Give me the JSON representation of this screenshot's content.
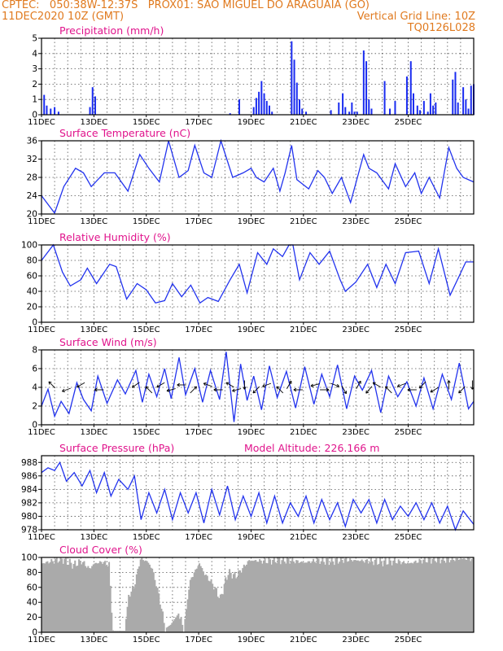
{
  "header": {
    "line1": "CPTEC:   050:38W-12:37S   PROX01: SAO MIGUEL DO ARAGUAIA (GO)",
    "line2": "11DEC2020 10Z (GMT)",
    "grid_note": "Vertical Grid Line: 10Z",
    "code": "TQ0126L028"
  },
  "colors": {
    "header": "#e07a1f",
    "title": "#e0148c",
    "line": "#2233ee",
    "bars": "#1a2cf0",
    "cloud": "#aaaaaa",
    "grid": "#555555",
    "axis": "#000000"
  },
  "x_tick_labels": [
    "11DEC",
    "13DEC",
    "15DEC",
    "17DEC",
    "19DEC",
    "21DEC",
    "23DEC",
    "25DEC"
  ],
  "chart_data": [
    {
      "type": "bar",
      "title": "Precipitation (mm/h)",
      "ylim": [
        0,
        5
      ],
      "yticks": [
        0,
        1,
        2,
        3,
        4,
        5
      ],
      "x": [
        0.1,
        0.2,
        0.35,
        0.5,
        0.65,
        1.85,
        1.95,
        2.05,
        7.2,
        7.55,
        8.1,
        8.2,
        8.3,
        8.4,
        8.5,
        8.6,
        8.7,
        8.8,
        9.55,
        9.65,
        9.75,
        9.85,
        9.95,
        10.1,
        11.05,
        11.35,
        11.5,
        11.6,
        11.75,
        11.85,
        11.95,
        12.05,
        12.3,
        12.4,
        12.5,
        12.6,
        13.1,
        13.3,
        13.5,
        13.95,
        14.1,
        14.2,
        14.35,
        14.45,
        14.6,
        14.75,
        14.85,
        14.95,
        15.05,
        15.7,
        15.8,
        15.9,
        16.1,
        16.2,
        16.3,
        16.4,
        16.5
      ],
      "values": [
        1.3,
        0.6,
        0.4,
        0.5,
        0.2,
        0.5,
        1.8,
        1.2,
        0.1,
        1.0,
        0.5,
        1.1,
        1.5,
        2.2,
        1.4,
        0.9,
        0.6,
        0.2,
        4.8,
        3.6,
        2.1,
        1.0,
        0.4,
        0.2,
        0.3,
        0.8,
        1.4,
        0.5,
        0.2,
        0.8,
        0.2,
        0.2,
        4.2,
        3.5,
        1.0,
        0.4,
        2.2,
        0.4,
        0.9,
        2.5,
        3.5,
        1.4,
        0.6,
        0.3,
        0.9,
        0.2,
        1.4,
        0.6,
        0.8,
        2.3,
        2.8,
        0.8,
        1.8,
        1.0,
        0.4,
        1.9,
        2.0
      ]
    },
    {
      "type": "line",
      "title": "Surface Temperature (nC)",
      "ylim": [
        20,
        36
      ],
      "yticks": [
        20,
        24,
        28,
        32,
        36
      ],
      "x": [
        0,
        0.5,
        0.85,
        1.3,
        1.6,
        1.9,
        2.4,
        2.8,
        3.3,
        3.75,
        4.1,
        4.5,
        4.85,
        5.25,
        5.6,
        5.85,
        6.2,
        6.5,
        6.85,
        7.3,
        7.7,
        8.0,
        8.2,
        8.5,
        8.85,
        9.1,
        9.3,
        9.55,
        9.75,
        10.2,
        10.55,
        10.8,
        11.1,
        11.45,
        11.8,
        12.3,
        12.5,
        12.8,
        13.25,
        13.5,
        13.9,
        14.25,
        14.5,
        14.8,
        15.2,
        15.55,
        15.85,
        16.1,
        16.5
      ],
      "values": [
        24,
        20.2,
        26,
        30,
        29,
        26,
        29,
        29,
        25,
        33,
        30,
        27,
        36,
        28,
        29.5,
        35,
        29,
        28,
        36,
        28,
        29,
        30,
        28,
        27,
        30,
        25,
        29,
        35,
        27.5,
        25.5,
        29.5,
        28,
        24.5,
        28,
        22.5,
        33,
        30,
        29,
        25.5,
        31,
        26,
        29,
        24.5,
        28,
        23.5,
        34.5,
        30,
        28,
        27
      ]
    },
    {
      "type": "line",
      "title": "Relative Humidity (%)",
      "ylim": [
        0,
        100
      ],
      "yticks": [
        0,
        20,
        40,
        60,
        80,
        100
      ],
      "x": [
        0,
        0.45,
        0.8,
        1.1,
        1.5,
        1.75,
        2.1,
        2.6,
        2.85,
        3.25,
        3.65,
        4.0,
        4.35,
        4.7,
        5.0,
        5.35,
        5.7,
        6.05,
        6.35,
        6.75,
        7.2,
        7.55,
        7.85,
        8.25,
        8.6,
        8.85,
        9.2,
        9.45,
        9.6,
        9.85,
        10.25,
        10.6,
        11.0,
        11.4,
        11.6,
        12.0,
        12.45,
        12.8,
        13.15,
        13.5,
        13.9,
        14.4,
        14.8,
        15.15,
        15.6,
        15.95,
        16.2,
        16.5
      ],
      "values": [
        80,
        100,
        65,
        47,
        55,
        70,
        50,
        75,
        72,
        30,
        50,
        42,
        25,
        28,
        50,
        33,
        48,
        25,
        32,
        27,
        55,
        75,
        38,
        90,
        75,
        95,
        85,
        100,
        100,
        55,
        90,
        75,
        92,
        55,
        40,
        52,
        75,
        45,
        75,
        50,
        90,
        92,
        50,
        95,
        35,
        60,
        78,
        78
      ]
    },
    {
      "type": "line",
      "title": "Surface Wind (m/s)",
      "ylim": [
        0,
        8
      ],
      "yticks": [
        0,
        2,
        4,
        6,
        8
      ],
      "x": [
        0,
        0.25,
        0.5,
        0.75,
        1.05,
        1.35,
        1.6,
        1.9,
        2.15,
        2.5,
        2.9,
        3.2,
        3.6,
        3.85,
        4.1,
        4.4,
        4.7,
        4.95,
        5.25,
        5.5,
        5.85,
        6.15,
        6.45,
        6.8,
        7.05,
        7.35,
        7.6,
        7.85,
        8.1,
        8.4,
        8.7,
        9.0,
        9.35,
        9.7,
        10.05,
        10.4,
        10.7,
        11.0,
        11.3,
        11.65,
        11.95,
        12.25,
        12.6,
        12.95,
        13.25,
        13.6,
        13.95,
        14.3,
        14.6,
        14.95,
        15.3,
        15.65,
        15.95,
        16.3,
        16.5
      ],
      "values": [
        2,
        3.8,
        0.9,
        2.5,
        1.2,
        4.5,
        2.7,
        1.5,
        5.2,
        2.3,
        4.8,
        3.3,
        5.8,
        2.4,
        5.4,
        3.0,
        6.0,
        2.8,
        7.2,
        3.2,
        6.0,
        2.4,
        5.8,
        2.7,
        7.8,
        0.3,
        6.5,
        2.6,
        5.2,
        1.6,
        6.3,
        2.9,
        5.7,
        1.8,
        6.2,
        2.2,
        5.4,
        3.0,
        6.4,
        1.7,
        5.2,
        3.7,
        5.8,
        1.3,
        5.2,
        3.0,
        4.6,
        2.0,
        5.0,
        1.7,
        5.4,
        2.7,
        6.6,
        1.7,
        2.5
      ],
      "arrow_x": [
        0.4,
        0.95,
        1.5,
        2.2,
        3.6,
        4.1,
        4.55,
        4.95,
        5.35,
        5.8,
        6.35,
        6.75,
        7.2,
        7.45,
        7.75,
        8.2,
        8.6,
        9.1,
        9.45,
        9.8,
        10.45,
        10.8,
        11.2,
        11.55,
        12.1,
        12.5,
        12.8,
        13.25,
        13.75,
        14.15,
        14.55,
        15.0,
        15.55,
        16.05,
        16.45
      ],
      "arrow_dir": [
        135,
        200,
        210,
        180,
        215,
        135,
        210,
        195,
        180,
        45,
        160,
        180,
        150,
        195,
        270,
        225,
        200,
        135,
        60,
        180,
        195,
        0,
        340,
        300,
        60,
        230,
        150,
        135,
        200,
        180,
        225,
        210,
        90,
        225,
        270
      ]
    },
    {
      "type": "line",
      "title": "Surface Pressure (hPa)",
      "annotation": "Model Altitude: 226.166  m",
      "ylim": [
        978,
        989
      ],
      "yticks": [
        978,
        980,
        982,
        984,
        986,
        988
      ],
      "x": [
        0,
        0.25,
        0.5,
        0.7,
        0.95,
        1.25,
        1.55,
        1.85,
        2.1,
        2.4,
        2.65,
        2.95,
        3.3,
        3.55,
        3.8,
        4.1,
        4.4,
        4.7,
        5.0,
        5.3,
        5.6,
        5.9,
        6.2,
        6.5,
        6.8,
        7.1,
        7.4,
        7.7,
        8.0,
        8.3,
        8.6,
        8.9,
        9.2,
        9.5,
        9.8,
        10.1,
        10.4,
        10.7,
        11.0,
        11.3,
        11.6,
        11.9,
        12.2,
        12.5,
        12.8,
        13.1,
        13.4,
        13.7,
        14.0,
        14.3,
        14.6,
        14.9,
        15.2,
        15.5,
        15.8,
        16.1,
        16.5
      ],
      "values": [
        986.5,
        987.2,
        986.8,
        988.0,
        985.2,
        986.5,
        984.5,
        986.8,
        983.5,
        986.5,
        983.0,
        985.5,
        984.0,
        986.0,
        979.5,
        983.5,
        980.5,
        984.0,
        979.5,
        983.5,
        980.5,
        983.5,
        979.0,
        984.0,
        980.2,
        984.5,
        979.5,
        983.0,
        980.0,
        983.5,
        979.0,
        983.0,
        979.0,
        982.0,
        980.0,
        983.0,
        979.0,
        982.5,
        979.5,
        982.0,
        978.5,
        982.5,
        980.5,
        982.5,
        979.0,
        982.5,
        979.5,
        981.5,
        980.0,
        982.0,
        979.5,
        982.0,
        979.0,
        981.5,
        978.0,
        980.8,
        978.8
      ]
    },
    {
      "type": "bar",
      "title": "Cloud Cover (%)",
      "ylim": [
        0,
        100
      ],
      "yticks": [
        0,
        20,
        40,
        60,
        80,
        100
      ],
      "x": [
        0,
        0.75,
        1.2,
        1.5,
        1.8,
        2.0,
        2.3,
        2.55,
        2.7,
        3.15,
        3.3,
        3.5,
        3.75,
        4.0,
        4.2,
        4.45,
        4.7,
        4.9,
        5.2,
        5.4,
        5.65,
        6.0,
        6.2,
        6.5,
        6.8,
        7.1,
        7.4,
        7.9,
        8.5,
        9.0,
        9.5,
        10.0,
        10.5,
        11.0,
        11.5,
        12.0,
        12.5,
        13.0,
        13.5,
        14.0,
        14.5,
        15.0,
        15.5,
        16.0,
        16.5
      ],
      "values": [
        92,
        98,
        90,
        95,
        85,
        92,
        94,
        90,
        2,
        2,
        50,
        60,
        98,
        95,
        85,
        50,
        5,
        10,
        25,
        5,
        70,
        92,
        78,
        65,
        45,
        80,
        75,
        96,
        95,
        97,
        96,
        93,
        96,
        95,
        97,
        96,
        95,
        94,
        95,
        92,
        96,
        98,
        97,
        98,
        98
      ]
    }
  ]
}
